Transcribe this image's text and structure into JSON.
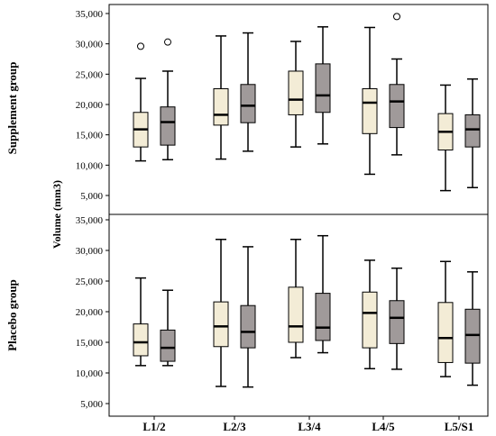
{
  "chart_data": {
    "type": "boxplot",
    "ylabel": "Volume (mm3)",
    "categories": [
      "L1/2",
      "L2/3",
      "L3/4",
      "L4/5",
      "L5/S1"
    ],
    "colors": {
      "series_1": "#f3ecd6",
      "series_2": "#a09a9a"
    },
    "panels": [
      {
        "name": "Supplement group",
        "ylim": [
          3500,
          35500
        ],
        "yticks": [
          5000,
          10000,
          15000,
          20000,
          25000,
          30000,
          35000
        ],
        "tick_labels": [
          "5,000",
          "10,000",
          "15,000",
          "20,000",
          "25,000",
          "30,000",
          "35,000"
        ],
        "series": [
          {
            "boxes": [
              {
                "min": 10700,
                "q1": 13000,
                "median": 15900,
                "q3": 18700,
                "max": 24300,
                "outliers": [
                  29600
                ]
              },
              {
                "min": 11000,
                "q1": 16600,
                "median": 18300,
                "q3": 22600,
                "max": 31300,
                "outliers": []
              },
              {
                "min": 13000,
                "q1": 18300,
                "median": 20800,
                "q3": 25500,
                "max": 30400,
                "outliers": []
              },
              {
                "min": 8500,
                "q1": 15200,
                "median": 20300,
                "q3": 22600,
                "max": 32700,
                "outliers": []
              },
              {
                "min": 5800,
                "q1": 12500,
                "median": 15500,
                "q3": 18500,
                "max": 23200,
                "outliers": []
              }
            ]
          },
          {
            "boxes": [
              {
                "min": 10900,
                "q1": 13300,
                "median": 17100,
                "q3": 19600,
                "max": 25500,
                "outliers": [
                  30300
                ]
              },
              {
                "min": 12300,
                "q1": 17000,
                "median": 19800,
                "q3": 23300,
                "max": 31800,
                "outliers": []
              },
              {
                "min": 13500,
                "q1": 18700,
                "median": 21500,
                "q3": 26700,
                "max": 32800,
                "outliers": []
              },
              {
                "min": 11700,
                "q1": 16200,
                "median": 20500,
                "q3": 23300,
                "max": 27500,
                "outliers": [
                  34500
                ]
              },
              {
                "min": 6300,
                "q1": 13000,
                "median": 15900,
                "q3": 18300,
                "max": 24200,
                "outliers": []
              }
            ]
          }
        ]
      },
      {
        "name": "Placebo group",
        "ylim": [
          3500,
          35500
        ],
        "yticks": [
          5000,
          10000,
          15000,
          20000,
          25000,
          30000,
          35000
        ],
        "tick_labels": [
          "5,000",
          "10,000",
          "15,000",
          "20,000",
          "25,000",
          "30,000",
          "35,000"
        ],
        "series": [
          {
            "boxes": [
              {
                "min": 11200,
                "q1": 12800,
                "median": 15000,
                "q3": 18000,
                "max": 25500,
                "outliers": []
              },
              {
                "min": 7800,
                "q1": 14300,
                "median": 17600,
                "q3": 21600,
                "max": 31800,
                "outliers": []
              },
              {
                "min": 12500,
                "q1": 15000,
                "median": 17600,
                "q3": 24000,
                "max": 31800,
                "outliers": []
              },
              {
                "min": 10700,
                "q1": 14100,
                "median": 19800,
                "q3": 23200,
                "max": 28400,
                "outliers": []
              },
              {
                "min": 9400,
                "q1": 11700,
                "median": 15700,
                "q3": 21500,
                "max": 28200,
                "outliers": []
              }
            ]
          },
          {
            "boxes": [
              {
                "min": 11200,
                "q1": 11900,
                "median": 14100,
                "q3": 17000,
                "max": 23500,
                "outliers": []
              },
              {
                "min": 7700,
                "q1": 14100,
                "median": 16700,
                "q3": 21000,
                "max": 30600,
                "outliers": []
              },
              {
                "min": 13300,
                "q1": 15300,
                "median": 17400,
                "q3": 23000,
                "max": 32400,
                "outliers": []
              },
              {
                "min": 10600,
                "q1": 14800,
                "median": 19000,
                "q3": 21800,
                "max": 27100,
                "outliers": []
              },
              {
                "min": 8000,
                "q1": 11600,
                "median": 16200,
                "q3": 20400,
                "max": 26500,
                "outliers": []
              }
            ]
          }
        ]
      }
    ]
  }
}
